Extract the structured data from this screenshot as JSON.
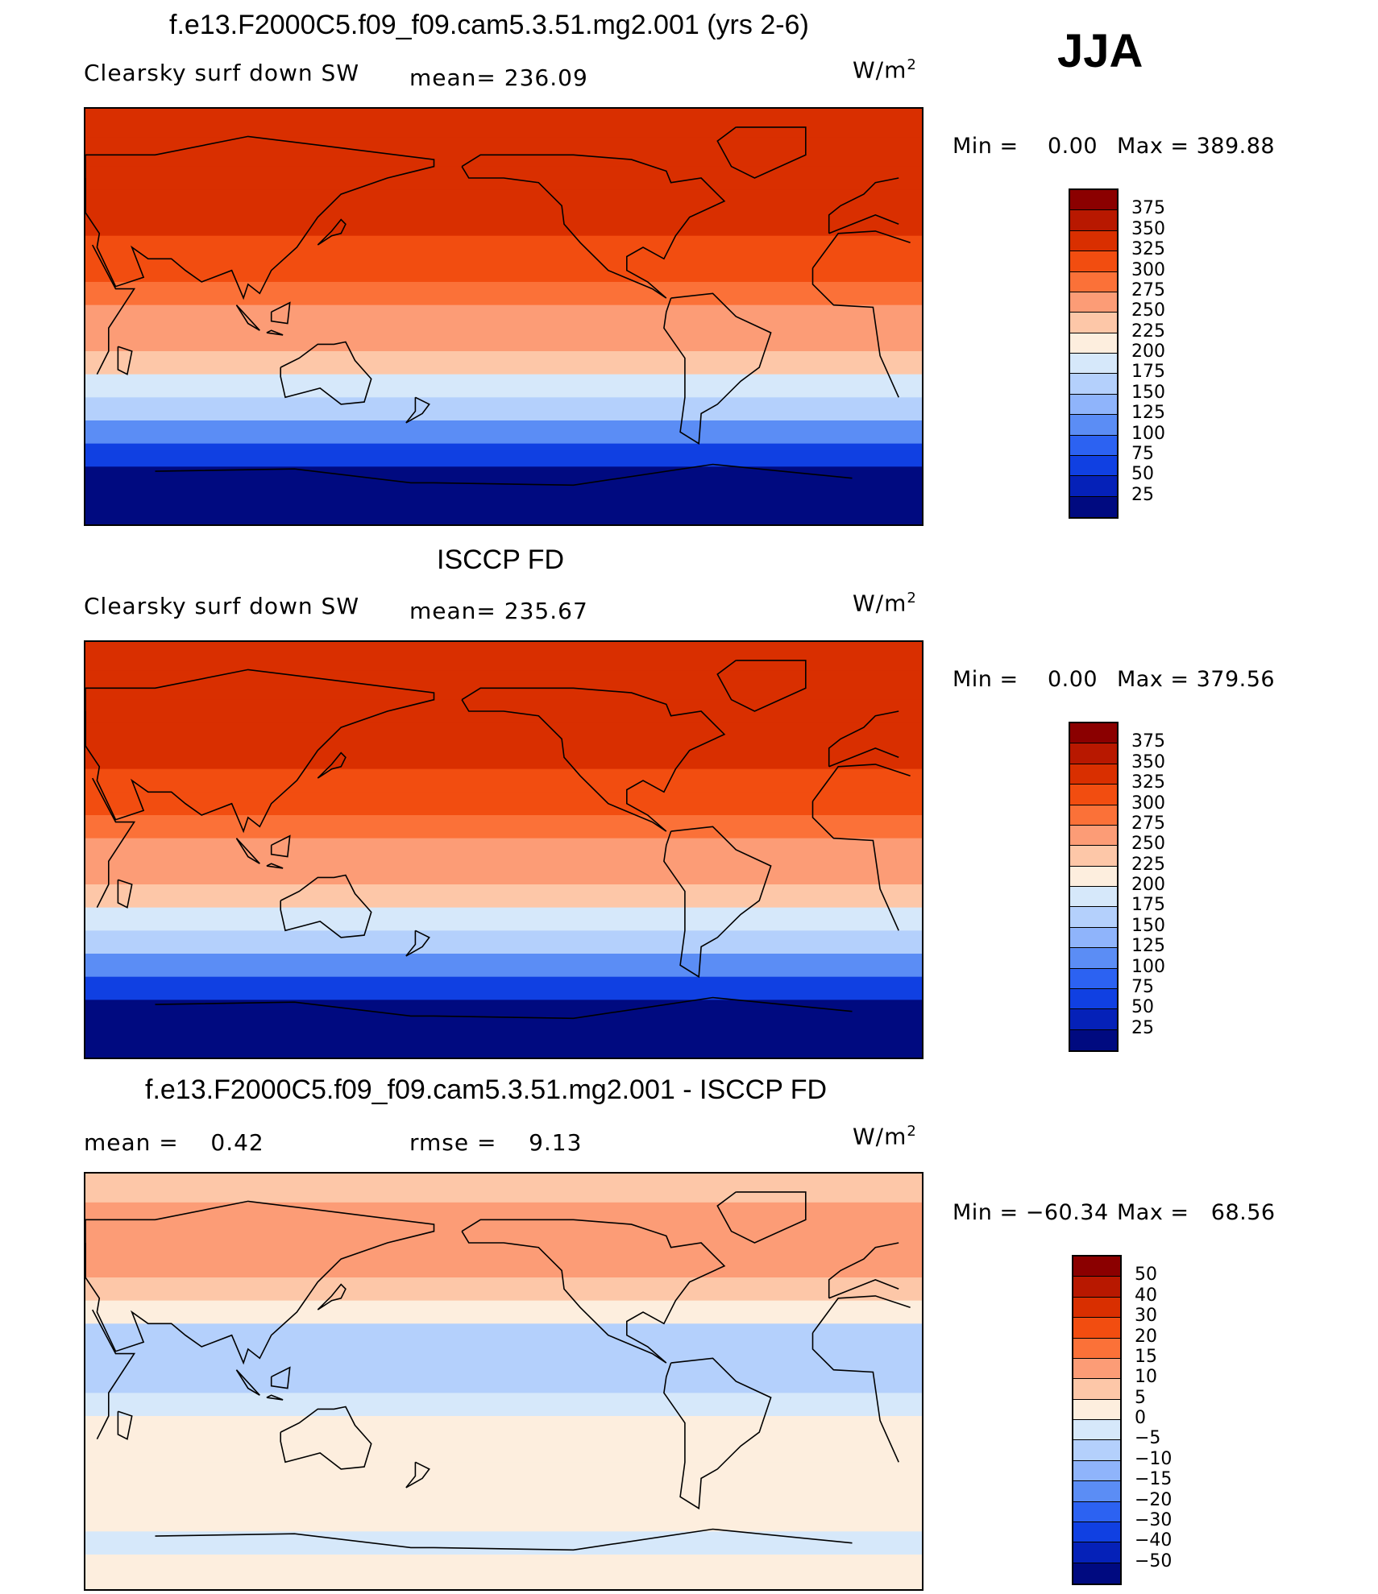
{
  "season": "JJA",
  "chart_data": [
    {
      "type": "heatmap",
      "title": "f.e13.F2000C5.f09_f09.cam5.3.51.mg2.001 (yrs 2-6)",
      "variable": "Clearsky surf down SW",
      "mean_label": "mean=",
      "mean": "236.09",
      "units": "W/m",
      "units_sup": "2",
      "min_label": "Min =",
      "min": "0.00",
      "max_label": "Max =",
      "max": "389.88",
      "colorbar_ticks": [
        "375",
        "350",
        "325",
        "300",
        "275",
        "250",
        "225",
        "200",
        "175",
        "150",
        "125",
        "100",
        "75",
        "50",
        "25"
      ],
      "colors": [
        "#8b0000",
        "#b81800",
        "#d92f00",
        "#f24d10",
        "#fb7138",
        "#fc9c76",
        "#fdc7a8",
        "#fdeede",
        "#d6e8fa",
        "#b4d0fc",
        "#8fb4fb",
        "#5b8df5",
        "#2c62f2",
        "#1040e2",
        "#0521b8",
        "#000a80"
      ],
      "series": [
        {
          "name": "zonal_mean_by_lat",
          "lat": [
            85,
            70,
            60,
            50,
            40,
            30,
            20,
            10,
            0,
            -10,
            -20,
            -30,
            -40,
            -50,
            -60,
            -70,
            -80
          ],
          "values": [
            340,
            335,
            330,
            328,
            330,
            320,
            305,
            285,
            270,
            255,
            225,
            195,
            160,
            115,
            60,
            15,
            0
          ]
        }
      ]
    },
    {
      "type": "heatmap",
      "title": "ISCCP FD",
      "variable": "Clearsky surf down SW",
      "mean_label": "mean=",
      "mean": "235.67",
      "units": "W/m",
      "units_sup": "2",
      "min_label": "Min =",
      "min": "0.00",
      "max_label": "Max =",
      "max": "379.56",
      "colorbar_ticks": [
        "375",
        "350",
        "325",
        "300",
        "275",
        "250",
        "225",
        "200",
        "175",
        "150",
        "125",
        "100",
        "75",
        "50",
        "25"
      ],
      "colors": [
        "#8b0000",
        "#b81800",
        "#d92f00",
        "#f24d10",
        "#fb7138",
        "#fc9c76",
        "#fdc7a8",
        "#fdeede",
        "#d6e8fa",
        "#b4d0fc",
        "#8fb4fb",
        "#5b8df5",
        "#2c62f2",
        "#1040e2",
        "#0521b8",
        "#000a80"
      ],
      "series": [
        {
          "name": "zonal_mean_by_lat",
          "lat": [
            85,
            70,
            60,
            50,
            40,
            30,
            20,
            10,
            0,
            -10,
            -20,
            -30,
            -40,
            -50,
            -60,
            -70,
            -80
          ],
          "values": [
            330,
            330,
            325,
            325,
            330,
            320,
            305,
            290,
            270,
            250,
            225,
            195,
            160,
            115,
            60,
            15,
            0
          ]
        }
      ]
    },
    {
      "type": "heatmap",
      "title": "f.e13.F2000C5.f09_f09.cam5.3.51.mg2.001 - ISCCP FD",
      "mean_label": "mean =",
      "mean": "0.42",
      "rmse_label": "rmse =",
      "rmse": "9.13",
      "units": "W/m",
      "units_sup": "2",
      "min_label": "Min =",
      "min": "−60.34",
      "max_label": "Max =",
      "max": "68.56",
      "colorbar_ticks": [
        "50",
        "40",
        "30",
        "20",
        "15",
        "10",
        "5",
        "0",
        "−5",
        "−10",
        "−15",
        "−20",
        "−30",
        "−40",
        "−50"
      ],
      "colors": [
        "#8b0000",
        "#b81800",
        "#d92f00",
        "#f24d10",
        "#fb7138",
        "#fc9c76",
        "#fdc7a8",
        "#fdeede",
        "#d6e8fa",
        "#b4d0fc",
        "#8fb4fb",
        "#5b8df5",
        "#2c62f2",
        "#1040e2",
        "#0521b8",
        "#000a80"
      ],
      "series": [
        {
          "name": "zonal_mean_by_lat",
          "lat": [
            85,
            70,
            60,
            50,
            40,
            30,
            20,
            10,
            0,
            -10,
            -20,
            -30,
            -40,
            -50,
            -60,
            -70,
            -80
          ],
          "values": [
            8,
            12,
            14,
            10,
            6,
            2,
            -6,
            -10,
            -8,
            -4,
            0,
            2,
            3,
            3,
            2,
            -2,
            0
          ]
        }
      ]
    }
  ]
}
